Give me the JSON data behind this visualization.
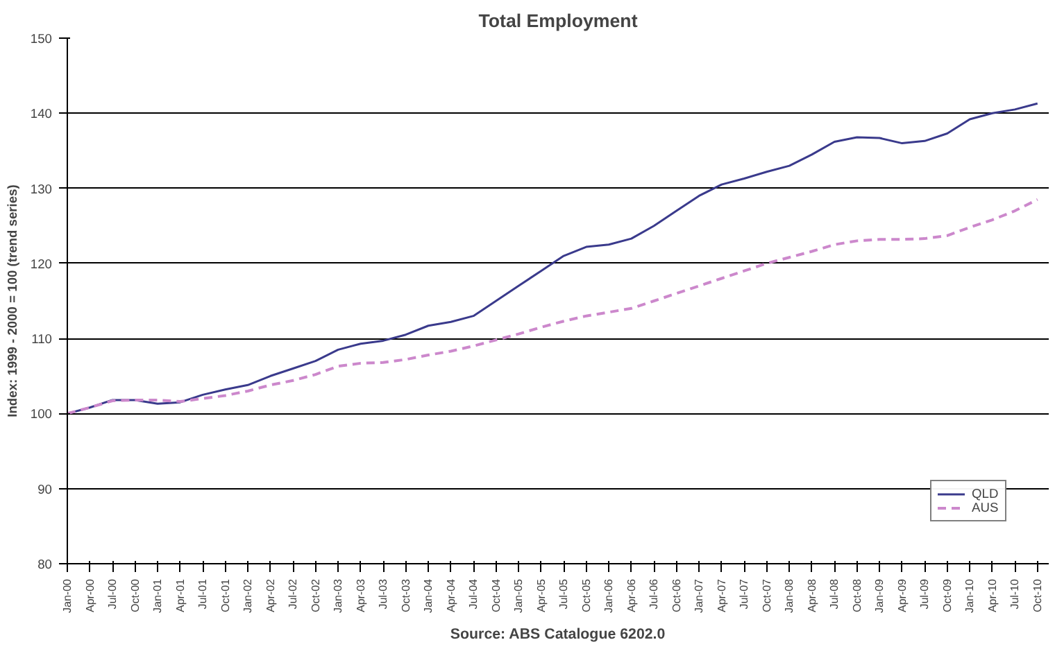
{
  "chart_data": {
    "type": "line",
    "title": "Total Employment",
    "ylabel": "Index: 1999 - 2000 = 100 (trend series)",
    "annotations": [
      "Source: ABS Catalogue 6202.0"
    ],
    "categories": [
      "Jan-00",
      "Apr-00",
      "Jul-00",
      "Oct-00",
      "Jan-01",
      "Apr-01",
      "Jul-01",
      "Oct-01",
      "Jan-02",
      "Apr-02",
      "Jul-02",
      "Oct-02",
      "Jan-03",
      "Apr-03",
      "Jul-03",
      "Oct-03",
      "Jan-04",
      "Apr-04",
      "Jul-04",
      "Oct-04",
      "Jan-05",
      "Apr-05",
      "Jul-05",
      "Oct-05",
      "Jan-06",
      "Apr-06",
      "Jul-06",
      "Oct-06",
      "Jan-07",
      "Apr-07",
      "Jul-07",
      "Oct-07",
      "Jan-08",
      "Apr-08",
      "Jul-08",
      "Oct-08",
      "Jan-09",
      "Apr-09",
      "Jul-09",
      "Oct-09",
      "Jan-10",
      "Apr-10",
      "Jul-10",
      "Oct-10"
    ],
    "series": [
      {
        "name": "QLD",
        "color": "#3a3a8c",
        "line_style": "solid",
        "values": [
          100,
          100.8,
          101.8,
          101.8,
          101.3,
          101.5,
          102.5,
          103.2,
          103.8,
          105,
          106,
          107,
          108.5,
          109.3,
          109.7,
          110.5,
          111.7,
          112.2,
          113,
          115,
          117,
          119,
          121,
          122.2,
          122.5,
          123.3,
          125,
          127,
          129,
          130.5,
          131.3,
          132.2,
          133,
          134.5,
          136.2,
          136.8,
          136.7,
          136,
          136.3,
          137.3,
          139.2,
          140,
          140.5,
          141.3
        ]
      },
      {
        "name": "AUS",
        "color": "#cc88cc",
        "line_style": "dashed",
        "values": [
          100,
          100.8,
          101.7,
          101.8,
          101.8,
          101.6,
          102,
          102.4,
          103,
          103.8,
          104.4,
          105.2,
          106.3,
          106.7,
          106.8,
          107.2,
          107.8,
          108.3,
          109,
          109.8,
          110.6,
          111.5,
          112.3,
          113,
          113.5,
          114,
          115,
          116,
          117,
          118,
          119,
          120,
          120.8,
          121.6,
          122.5,
          123,
          123.2,
          123.2,
          123.3,
          123.7,
          124.8,
          125.8,
          127,
          128.5
        ]
      }
    ],
    "ylim": [
      80,
      150
    ],
    "yticks": [
      80,
      90,
      100,
      110,
      120,
      130,
      140,
      150
    ],
    "grid": "y",
    "legend": "bottom right"
  }
}
